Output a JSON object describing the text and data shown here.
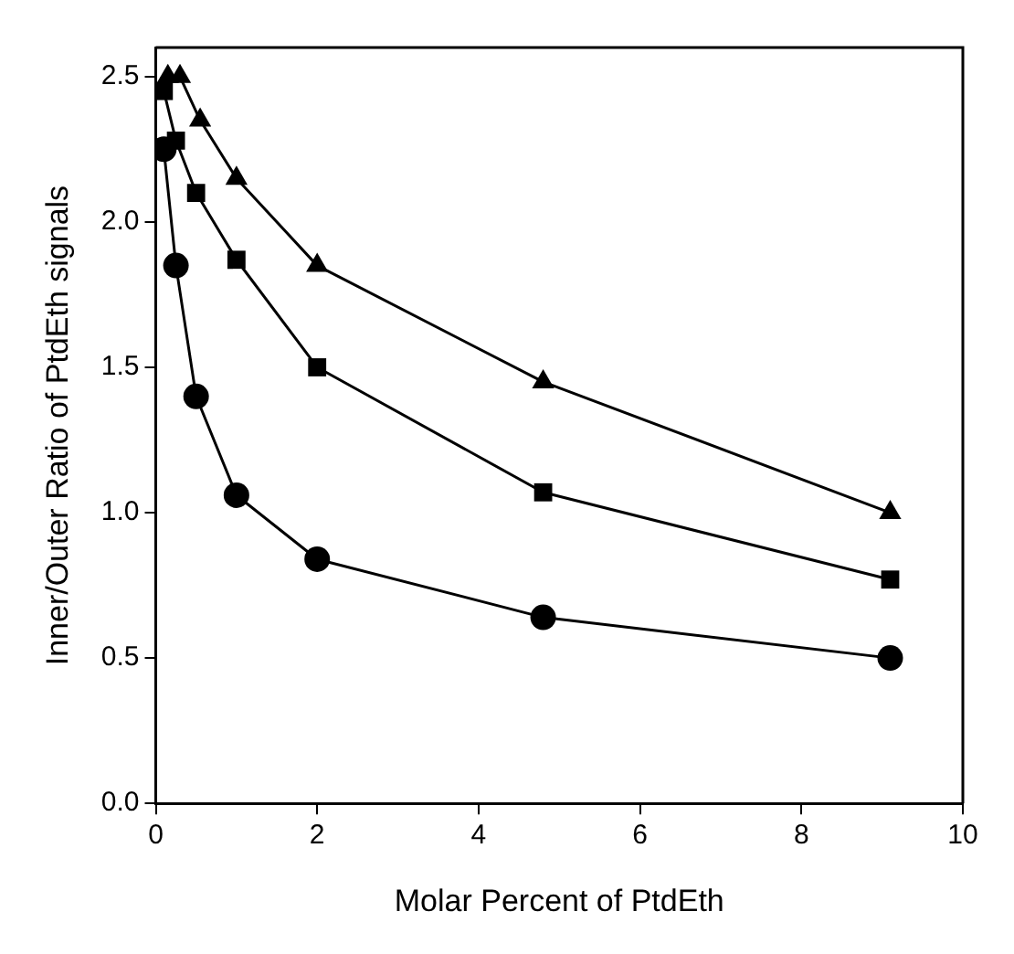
{
  "chart_data": {
    "type": "line",
    "xlabel": "Molar Percent of PtdEth",
    "ylabel": "Inner/Outer Ratio of PtdEth signals",
    "xlim": [
      0,
      10
    ],
    "xticks": [
      0,
      2,
      4,
      6,
      8,
      10
    ],
    "ylim": [
      0,
      2.6
    ],
    "yticks": [
      {
        "value": 0,
        "label": "0.0"
      },
      {
        "value": 0.5,
        "label": "0.5"
      },
      {
        "value": 1,
        "label": "1.0"
      },
      {
        "value": 1.5,
        "label": "1.5"
      },
      {
        "value": 2,
        "label": "2.0"
      },
      {
        "value": 2.5,
        "label": "2.5"
      }
    ],
    "grid": false,
    "legend": false,
    "line_style": "solid",
    "series": [
      {
        "color": "#000000",
        "marker": "circle",
        "x": [
          0.1,
          0.25,
          0.5,
          1,
          2,
          4.8,
          9.1
        ],
        "values": [
          2.25,
          1.85,
          1.4,
          1.06,
          0.84,
          0.64,
          0.5
        ]
      },
      {
        "color": "#000000",
        "marker": "square",
        "x": [
          0.1,
          0.25,
          0.5,
          1,
          2,
          4.8,
          9.1
        ],
        "values": [
          2.45,
          2.28,
          2.1,
          1.87,
          1.5,
          1.07,
          0.77
        ]
      },
      {
        "color": "#000000",
        "marker": "triangle",
        "x": [
          0.15,
          0.3,
          0.55,
          1,
          2,
          4.8,
          9.1
        ],
        "values": [
          2.5,
          2.5,
          2.35,
          2.15,
          1.85,
          1.45,
          1.0
        ]
      }
    ]
  }
}
